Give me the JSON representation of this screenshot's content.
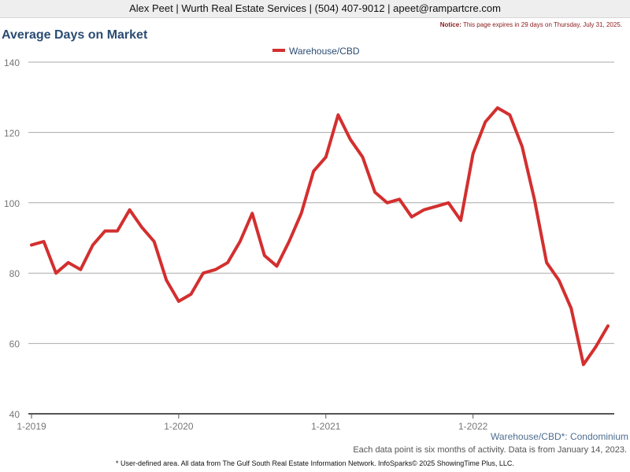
{
  "header": {
    "agent_line": "Alex Peet | Wurth Real Estate Services | (504) 407-9012 | apeet@rampartcre.com"
  },
  "notice": {
    "label": "Notice:",
    "text": "This page expires in 29 days on Thursday, July 31, 2025."
  },
  "subtitle": "Warehouse/CBD*: Condominium",
  "note": "Each data point is six months of activity. Data is from January 14, 2023.",
  "footer": "* User-defined area. All data from The Gulf South Real Estate Information Network. InfoSparks© 2025 ShowingTime Plus, LLC.",
  "colors": {
    "series": "#d32f2f",
    "title": "#2b4c73"
  },
  "chart_data": {
    "type": "line",
    "title": "Average Days on Market",
    "xlabel": "",
    "ylabel": "",
    "ylim": [
      40,
      140
    ],
    "yticks": [
      40,
      60,
      80,
      100,
      120,
      140
    ],
    "grid": true,
    "legend_position": "top-center",
    "x_tick_labels": [
      "1-2019",
      "1-2020",
      "1-2021",
      "1-2022"
    ],
    "x": [
      "2019-01",
      "2019-02",
      "2019-03",
      "2019-04",
      "2019-05",
      "2019-06",
      "2019-07",
      "2019-08",
      "2019-09",
      "2019-10",
      "2019-11",
      "2019-12",
      "2020-01",
      "2020-02",
      "2020-03",
      "2020-04",
      "2020-05",
      "2020-06",
      "2020-07",
      "2020-08",
      "2020-09",
      "2020-10",
      "2020-11",
      "2020-12",
      "2021-01",
      "2021-02",
      "2021-03",
      "2021-04",
      "2021-05",
      "2021-06",
      "2021-07",
      "2021-08",
      "2021-09",
      "2021-10",
      "2021-11",
      "2021-12",
      "2022-01",
      "2022-02",
      "2022-03",
      "2022-04",
      "2022-05",
      "2022-06",
      "2022-07",
      "2022-08",
      "2022-09",
      "2022-10",
      "2022-11",
      "2022-12"
    ],
    "series": [
      {
        "name": "Warehouse/CBD",
        "color": "#d32f2f",
        "values": [
          88,
          89,
          80,
          83,
          81,
          88,
          92,
          92,
          98,
          93,
          89,
          78,
          72,
          74,
          80,
          81,
          83,
          89,
          97,
          85,
          82,
          89,
          97,
          109,
          113,
          125,
          118,
          113,
          103,
          100,
          101,
          96,
          98,
          99,
          100,
          95,
          114,
          123,
          127,
          125,
          116,
          101,
          83,
          78,
          70,
          54,
          59,
          65
        ]
      }
    ]
  }
}
